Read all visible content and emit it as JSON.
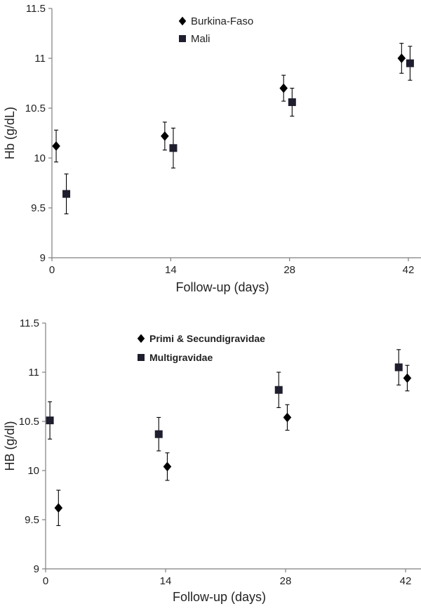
{
  "chart_data": [
    {
      "type": "scatter",
      "error_bars": true,
      "xlabel": "Follow-up (days)",
      "ylabel": "Hb (g/dL)",
      "xticks": [
        0,
        14,
        28,
        42
      ],
      "xlim": [
        -1,
        43
      ],
      "yticks": [
        9,
        9.5,
        10,
        10.5,
        11,
        11.5
      ],
      "ylim": [
        9,
        11.5
      ],
      "legend_position": "top-center",
      "grid": false,
      "series": [
        {
          "name": "Burkina-Faso",
          "marker": "diamond",
          "x": [
            0.5,
            13.3,
            27.3,
            41.2
          ],
          "y": [
            10.12,
            10.22,
            10.7,
            11.0
          ],
          "err": [
            0.16,
            0.14,
            0.13,
            0.15
          ]
        },
        {
          "name": "Mali",
          "marker": "square",
          "x": [
            1.7,
            14.3,
            28.3,
            42.2
          ],
          "y": [
            9.64,
            10.1,
            10.56,
            10.95
          ],
          "err": [
            0.2,
            0.2,
            0.14,
            0.17
          ]
        }
      ]
    },
    {
      "type": "scatter",
      "error_bars": true,
      "xlabel": "Follow-up (days)",
      "ylabel": "HB (g/dl)",
      "xticks": [
        0,
        14,
        28,
        42
      ],
      "xlim": [
        0,
        43
      ],
      "yticks": [
        9,
        9.5,
        10,
        10.5,
        11,
        11.5
      ],
      "ylim": [
        9,
        11.5
      ],
      "legend_position": "top-left",
      "grid": false,
      "series": [
        {
          "name": "Primi & Secundigravidae",
          "marker": "diamond",
          "x": [
            1.5,
            14.2,
            28.2,
            42.2
          ],
          "y": [
            9.62,
            10.04,
            10.54,
            10.94
          ],
          "err": [
            0.18,
            0.14,
            0.13,
            0.13
          ]
        },
        {
          "name": "Multigravidae",
          "marker": "square",
          "x": [
            0.5,
            13.2,
            27.2,
            41.2
          ],
          "y": [
            10.51,
            10.37,
            10.82,
            11.05
          ],
          "err": [
            0.19,
            0.17,
            0.18,
            0.18
          ]
        }
      ]
    }
  ]
}
